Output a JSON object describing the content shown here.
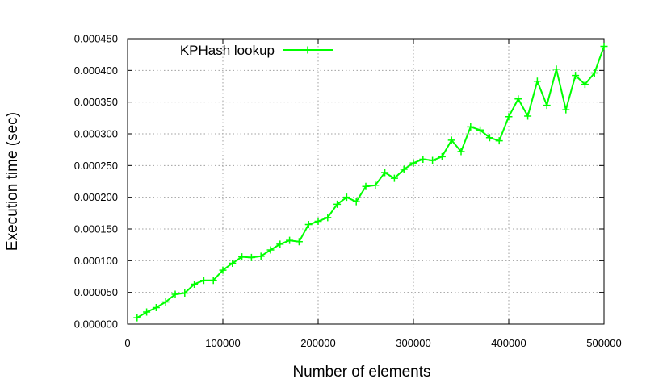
{
  "chart_data": {
    "type": "line",
    "xlabel": "Number of elements",
    "ylabel": "Execution time (sec)",
    "xlim": [
      0,
      500000
    ],
    "ylim": [
      0,
      0.00045
    ],
    "x_ticks": [
      0,
      100000,
      200000,
      300000,
      400000,
      500000
    ],
    "x_tick_labels": [
      "0",
      "100000",
      "200000",
      "300000",
      "400000",
      "500000"
    ],
    "y_ticks": [
      0,
      5e-05,
      0.0001,
      0.00015,
      0.0002,
      0.00025,
      0.0003,
      0.00035,
      0.0004,
      0.00045
    ],
    "y_tick_labels": [
      "0.000000",
      "0.000050",
      "0.000100",
      "0.000150",
      "0.000200",
      "0.000250",
      "0.000300",
      "0.000350",
      "0.000400",
      "0.000450"
    ],
    "grid": true,
    "legend_position": "top-left",
    "series": [
      {
        "name": "KPHash lookup",
        "color": "#00ff00",
        "marker": "plus",
        "x": [
          10000,
          20000,
          30000,
          40000,
          50000,
          60000,
          70000,
          80000,
          90000,
          100000,
          110000,
          120000,
          130000,
          140000,
          150000,
          160000,
          170000,
          180000,
          190000,
          200000,
          210000,
          220000,
          230000,
          240000,
          250000,
          260000,
          270000,
          280000,
          290000,
          300000,
          310000,
          320000,
          330000,
          340000,
          350000,
          360000,
          370000,
          380000,
          390000,
          400000,
          410000,
          420000,
          430000,
          440000,
          450000,
          460000,
          470000,
          480000,
          490000,
          500000
        ],
        "y": [
          1e-05,
          1.9e-05,
          2.6e-05,
          3.5e-05,
          4.7e-05,
          4.9e-05,
          6.3e-05,
          6.9e-05,
          6.9e-05,
          8.5e-05,
          9.6e-05,
          0.000106,
          0.000105,
          0.000107,
          0.000117,
          0.000126,
          0.000132,
          0.00013,
          0.000157,
          0.000162,
          0.000168,
          0.000189,
          0.0002,
          0.000193,
          0.000217,
          0.000219,
          0.000239,
          0.00023,
          0.000244,
          0.000254,
          0.00026,
          0.000258,
          0.000264,
          0.00029,
          0.000272,
          0.000311,
          0.000306,
          0.000294,
          0.000289,
          0.000327,
          0.000355,
          0.000328,
          0.000383,
          0.000345,
          0.000402,
          0.000338,
          0.000392,
          0.000378,
          0.000396,
          0.000438
        ]
      }
    ]
  }
}
